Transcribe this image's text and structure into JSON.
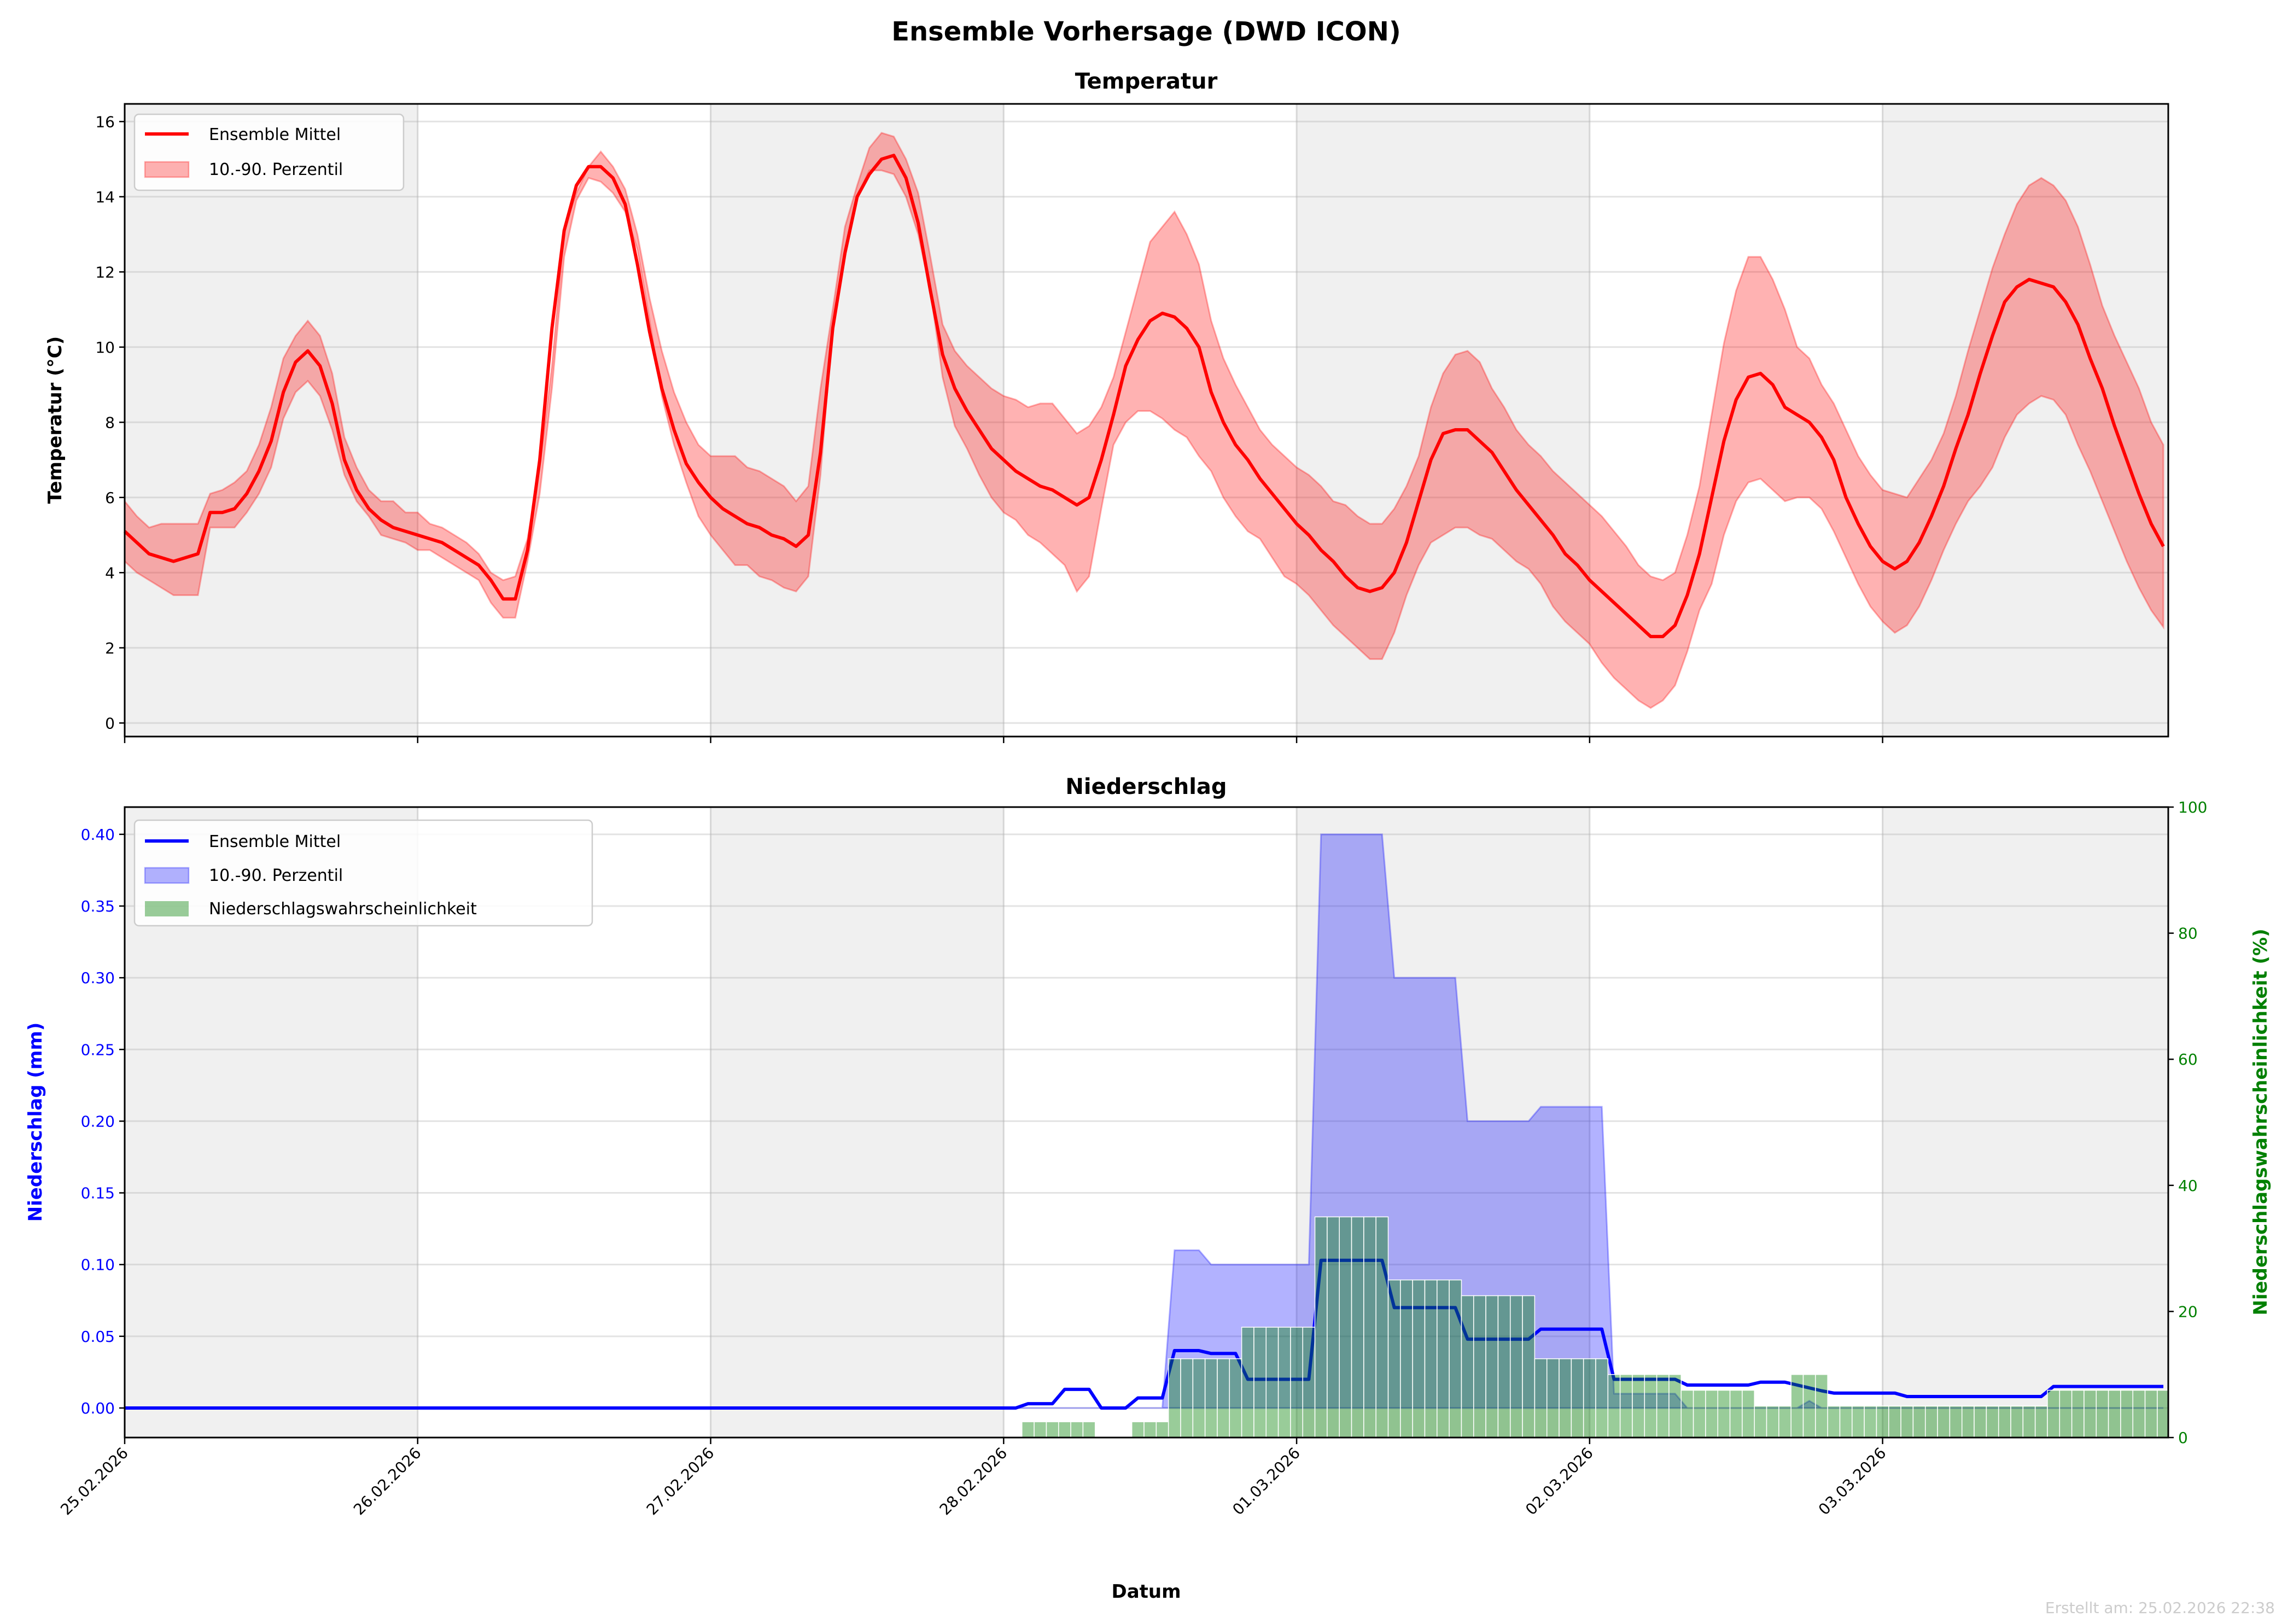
{
  "title": "Ensemble Vorhersage (DWD ICON)",
  "footer": "Erstellt am: 25.02.2026 22:38",
  "colors": {
    "temp": "#ff0000",
    "precip": "#0000ff",
    "probability": "#008000",
    "night_band": "#f0f0f0"
  },
  "chart_data": [
    {
      "type": "line",
      "title": "Temperatur",
      "ylabel": "Temperatur (°C)",
      "xlabel": "",
      "x_step_hours": 1,
      "xlim_hours": [
        0,
        167.4
      ],
      "ylim": [
        -0.36,
        16.47
      ],
      "grid": true,
      "legend_position": "top-left",
      "xticks": [
        "25.02.2026",
        "26.02.2026",
        "27.02.2026",
        "28.02.2026",
        "01.03.2026",
        "02.03.2026",
        "03.03.2026"
      ],
      "yticks": [
        0,
        2,
        4,
        6,
        8,
        10,
        12,
        14,
        16
      ],
      "ytick_labels": [
        "0",
        "2",
        "4",
        "6",
        "8",
        "10",
        "12",
        "14",
        "16"
      ],
      "legend": [
        "Ensemble Mittel",
        "10.-90. Perzentil"
      ],
      "series": [
        {
          "name": "Ensemble Mittel",
          "values": [
            5.1,
            4.8,
            4.5,
            4.4,
            4.3,
            4.4,
            4.5,
            5.6,
            5.6,
            5.7,
            6.1,
            6.7,
            7.5,
            8.8,
            9.6,
            9.9,
            9.5,
            8.5,
            7.0,
            6.2,
            5.7,
            5.4,
            5.2,
            5.1,
            5.0,
            4.9,
            4.8,
            4.6,
            4.4,
            4.2,
            3.8,
            3.3,
            3.3,
            4.6,
            7.0,
            10.5,
            13.1,
            14.3,
            14.8,
            14.8,
            14.5,
            13.8,
            12.2,
            10.4,
            8.9,
            7.8,
            6.9,
            6.4,
            6.0,
            5.7,
            5.5,
            5.3,
            5.2,
            5.0,
            4.9,
            4.7,
            5.0,
            7.2,
            10.5,
            12.5,
            14.0,
            14.6,
            15.0,
            15.1,
            14.5,
            13.3,
            11.5,
            9.8,
            8.9,
            8.3,
            7.8,
            7.3,
            7.0,
            6.7,
            6.5,
            6.3,
            6.2,
            6.0,
            5.8,
            6.0,
            7.0,
            8.2,
            9.5,
            10.2,
            10.7,
            10.9,
            10.8,
            10.5,
            10.0,
            8.8,
            8.0,
            7.4,
            7.0,
            6.5,
            6.1,
            5.7,
            5.3,
            5.0,
            4.6,
            4.3,
            3.9,
            3.6,
            3.5,
            3.6,
            4.0,
            4.8,
            5.9,
            7.0,
            7.7,
            7.8,
            7.8,
            7.5,
            7.2,
            6.7,
            6.2,
            5.8,
            5.4,
            5.0,
            4.5,
            4.2,
            3.8,
            3.5,
            3.2,
            2.9,
            2.6,
            2.3,
            2.3,
            2.6,
            3.4,
            4.5,
            6.0,
            7.5,
            8.6,
            9.2,
            9.3,
            9.0,
            8.4,
            8.2,
            8.0,
            7.6,
            7.0,
            6.0,
            5.3,
            4.7,
            4.3,
            4.1,
            4.3,
            4.8,
            5.5,
            6.3,
            7.3,
            8.2,
            9.3,
            10.3,
            11.2,
            11.6,
            11.8,
            11.7,
            11.6,
            11.2,
            10.6,
            9.7,
            8.9,
            7.9,
            7.0,
            6.1,
            5.3,
            4.7
          ]
        },
        {
          "name": "10. Perzentil",
          "values": [
            4.3,
            4.0,
            3.8,
            3.6,
            3.4,
            3.4,
            3.4,
            5.2,
            5.2,
            5.2,
            5.6,
            6.1,
            6.8,
            8.1,
            8.8,
            9.1,
            8.7,
            7.8,
            6.6,
            5.9,
            5.5,
            5.0,
            4.9,
            4.8,
            4.6,
            4.6,
            4.4,
            4.2,
            4.0,
            3.8,
            3.2,
            2.8,
            2.8,
            4.3,
            6.1,
            8.9,
            12.4,
            13.9,
            14.5,
            14.4,
            14.1,
            13.6,
            12.6,
            10.7,
            8.7,
            7.4,
            6.4,
            5.5,
            5.0,
            4.6,
            4.2,
            4.2,
            3.9,
            3.8,
            3.6,
            3.5,
            3.9,
            6.6,
            10.6,
            12.6,
            14.0,
            14.7,
            14.7,
            14.6,
            14.0,
            13.0,
            11.5,
            9.2,
            7.9,
            7.3,
            6.6,
            6.0,
            5.6,
            5.4,
            5.0,
            4.8,
            4.5,
            4.2,
            3.5,
            3.9,
            5.7,
            7.4,
            8.0,
            8.3,
            8.3,
            8.1,
            7.8,
            7.6,
            7.1,
            6.7,
            6.0,
            5.5,
            5.1,
            4.9,
            4.4,
            3.9,
            3.7,
            3.4,
            3.0,
            2.6,
            2.3,
            2.0,
            1.7,
            1.7,
            2.4,
            3.4,
            4.2,
            4.8,
            5.0,
            5.2,
            5.2,
            5.0,
            4.9,
            4.6,
            4.3,
            4.1,
            3.7,
            3.1,
            2.7,
            2.4,
            2.1,
            1.6,
            1.2,
            0.9,
            0.6,
            0.4,
            0.6,
            1.0,
            1.9,
            3.0,
            3.7,
            5.0,
            5.9,
            6.4,
            6.5,
            6.2,
            5.9,
            6.0,
            6.0,
            5.7,
            5.1,
            4.4,
            3.7,
            3.1,
            2.7,
            2.4,
            2.6,
            3.1,
            3.8,
            4.6,
            5.3,
            5.9,
            6.3,
            6.8,
            7.6,
            8.2,
            8.5,
            8.7,
            8.6,
            8.2,
            7.4,
            6.7,
            5.9,
            5.1,
            4.3,
            3.6,
            3.0,
            2.55
          ]
        },
        {
          "name": "90. Perzentil",
          "values": [
            5.9,
            5.5,
            5.2,
            5.3,
            5.3,
            5.3,
            5.3,
            6.1,
            6.2,
            6.4,
            6.7,
            7.4,
            8.4,
            9.7,
            10.3,
            10.7,
            10.3,
            9.3,
            7.6,
            6.8,
            6.2,
            5.9,
            5.9,
            5.6,
            5.6,
            5.3,
            5.2,
            5.0,
            4.8,
            4.5,
            4.0,
            3.8,
            3.9,
            4.9,
            6.8,
            9.5,
            13.1,
            14.1,
            14.8,
            15.2,
            14.8,
            14.2,
            13.0,
            11.3,
            9.9,
            8.8,
            8.0,
            7.4,
            7.1,
            7.1,
            7.1,
            6.8,
            6.7,
            6.5,
            6.3,
            5.9,
            6.3,
            8.9,
            11.0,
            13.2,
            14.3,
            15.3,
            15.7,
            15.6,
            15.0,
            14.1,
            12.4,
            10.6,
            9.9,
            9.5,
            9.2,
            8.9,
            8.7,
            8.6,
            8.4,
            8.5,
            8.5,
            8.1,
            7.7,
            7.9,
            8.4,
            9.2,
            10.4,
            11.6,
            12.8,
            13.2,
            13.6,
            13.0,
            12.2,
            10.7,
            9.7,
            9.0,
            8.4,
            7.8,
            7.4,
            7.1,
            6.8,
            6.6,
            6.3,
            5.9,
            5.8,
            5.5,
            5.3,
            5.3,
            5.7,
            6.3,
            7.1,
            8.4,
            9.3,
            9.8,
            9.9,
            9.6,
            8.9,
            8.4,
            7.8,
            7.4,
            7.1,
            6.7,
            6.4,
            6.1,
            5.8,
            5.5,
            5.1,
            4.7,
            4.2,
            3.9,
            3.8,
            4.0,
            5.0,
            6.3,
            8.2,
            10.1,
            11.5,
            12.4,
            12.4,
            11.8,
            11.0,
            10.0,
            9.7,
            9.0,
            8.5,
            7.8,
            7.1,
            6.6,
            6.2,
            6.1,
            6.0,
            6.5,
            7.0,
            7.7,
            8.7,
            9.9,
            11.0,
            12.1,
            13.0,
            13.8,
            14.3,
            14.5,
            14.3,
            13.9,
            13.2,
            12.2,
            11.1,
            10.3,
            9.6,
            8.9,
            8.0,
            7.4
          ]
        }
      ]
    },
    {
      "type": "bar+line",
      "title": "Niederschlag",
      "ylabel": "Niederschlag (mm)",
      "ylabel_right": "Niederschlagswahrscheinlichkeit (%)",
      "xlabel": "Datum",
      "x_step_hours": 1,
      "xlim_hours": [
        0,
        167.4
      ],
      "ylim": [
        -0.0206,
        0.419
      ],
      "ylim_right": [
        0,
        100
      ],
      "grid": true,
      "legend_position": "top-left",
      "xticks": [
        "25.02.2026",
        "26.02.2026",
        "27.02.2026",
        "28.02.2026",
        "01.03.2026",
        "02.03.2026",
        "03.03.2026"
      ],
      "yticks": [
        0,
        0.05,
        0.1,
        0.15,
        0.2,
        0.25,
        0.3,
        0.35,
        0.4
      ],
      "ytick_labels": [
        "0.00",
        "0.05",
        "0.10",
        "0.15",
        "0.20",
        "0.25",
        "0.30",
        "0.35",
        "0.40"
      ],
      "yticks_right": [
        0,
        20,
        40,
        60,
        80,
        100
      ],
      "ytick_labels_right": [
        "0",
        "20",
        "40",
        "60",
        "80",
        "100"
      ],
      "legend": [
        "Ensemble Mittel",
        "10.-90. Perzentil",
        "Niederschlagswahrscheinlichkeit"
      ],
      "segments": {
        "mean": [
          [
            0,
            72,
            0
          ],
          [
            73,
            73,
            0
          ],
          [
            74,
            76,
            0.003
          ],
          [
            77,
            79,
            0.013
          ],
          [
            80,
            82,
            0
          ],
          [
            83,
            85,
            0.007
          ],
          [
            86,
            88,
            0.04
          ],
          [
            89,
            91,
            0.038
          ],
          [
            92,
            97,
            0.02
          ],
          [
            98,
            103,
            0.103
          ],
          [
            104,
            109,
            0.07
          ],
          [
            110,
            115,
            0.048
          ],
          [
            116,
            121,
            0.055
          ],
          [
            122,
            127,
            0.02
          ],
          [
            128,
            133,
            0.016
          ],
          [
            134,
            136,
            0.018
          ],
          [
            137,
            137,
            0.016
          ],
          [
            138,
            138,
            0.014
          ],
          [
            139,
            139,
            0.012
          ],
          [
            140,
            145,
            0.0104
          ],
          [
            146,
            157,
            0.008
          ],
          [
            158,
            167,
            0.015
          ]
        ],
        "p10": [
          [
            0,
            167,
            0
          ]
        ],
        "p90": [
          [
            0,
            85,
            0
          ],
          [
            86,
            88,
            0.11
          ],
          [
            89,
            97,
            0.1
          ],
          [
            98,
            103,
            0.4
          ],
          [
            104,
            109,
            0.3
          ],
          [
            110,
            115,
            0.2
          ],
          [
            116,
            121,
            0.21
          ],
          [
            122,
            127,
            0.01
          ],
          [
            128,
            137,
            0
          ],
          [
            138,
            138,
            0.005
          ],
          [
            139,
            167,
            0
          ]
        ],
        "probability_percent": [
          [
            0,
            73,
            0
          ],
          [
            74,
            79,
            2.5
          ],
          [
            80,
            82,
            0
          ],
          [
            83,
            85,
            2.5
          ],
          [
            86,
            91,
            12.5
          ],
          [
            92,
            97,
            17.5
          ],
          [
            98,
            103,
            35
          ],
          [
            104,
            109,
            25
          ],
          [
            110,
            115,
            22.5
          ],
          [
            116,
            121,
            12.5
          ],
          [
            122,
            127,
            10
          ],
          [
            128,
            133,
            7.5
          ],
          [
            134,
            136,
            5
          ],
          [
            137,
            139,
            10
          ],
          [
            140,
            157,
            5
          ],
          [
            158,
            167,
            7.5
          ]
        ]
      }
    }
  ]
}
